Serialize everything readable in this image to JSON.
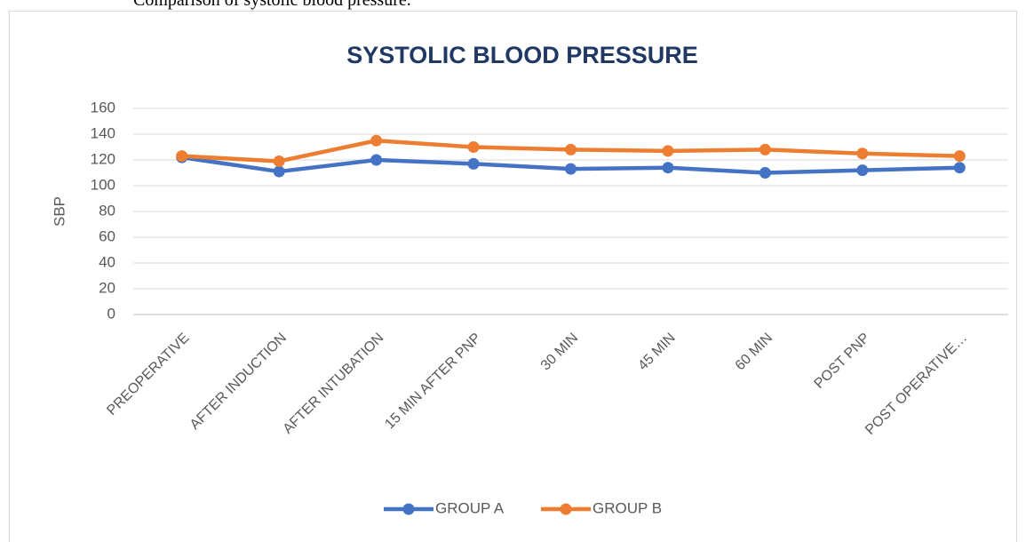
{
  "caption": "Comparison of systolic blood pressure.",
  "chart_data": {
    "type": "line",
    "title": "SYSTOLIC BLOOD PRESSURE",
    "y_label": "SBP",
    "categories": [
      "PREOPERATIVE",
      "AFTER INDUCTION",
      "AFTER INTUBATION",
      "15 MIN AFTER PNP",
      "30 MIN",
      "45 MIN",
      "60 MIN",
      "POST PNP",
      "POST OPERATIVE…"
    ],
    "series": [
      {
        "name": "GROUP A",
        "color": "#4472c4",
        "values": [
          122,
          111,
          120,
          117,
          113,
          114,
          110,
          112,
          114
        ]
      },
      {
        "name": "GROUP B",
        "color": "#ed7d31",
        "values": [
          123,
          119,
          135,
          130,
          128,
          127,
          128,
          125,
          123
        ]
      }
    ],
    "ylim": [
      0,
      160
    ],
    "yticks": [
      0,
      20,
      40,
      60,
      80,
      100,
      120,
      140,
      160
    ],
    "grid": true,
    "legend": "bottom"
  }
}
